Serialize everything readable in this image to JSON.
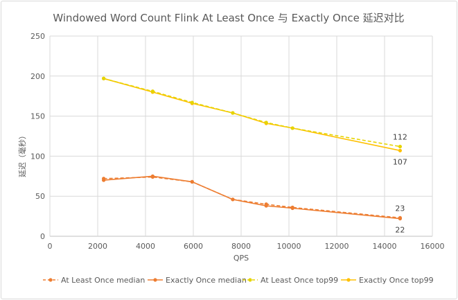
{
  "chart_data": {
    "type": "line",
    "title": "Windowed Word Count Flink At Least Once 与 Exactly Once 延迟对比",
    "xlabel": "QPS",
    "ylabel": "延迟（毫秒）",
    "xlim": [
      0,
      16000
    ],
    "ylim": [
      0,
      250
    ],
    "x_ticks": [
      "0",
      "2000",
      "4000",
      "6000",
      "8000",
      "10000",
      "12000",
      "14000",
      "16000"
    ],
    "y_ticks": [
      "0",
      "50",
      "100",
      "150",
      "200",
      "250"
    ],
    "x_tick_values": [
      0,
      2000,
      4000,
      6000,
      8000,
      10000,
      12000,
      14000,
      16000
    ],
    "y_tick_values": [
      0,
      50,
      100,
      150,
      200,
      250
    ],
    "grid": true,
    "legend_position": "bottom",
    "series": [
      {
        "name": "At Least Once median",
        "color": "#ED7D31",
        "dashed": true,
        "points": [
          [
            2250,
            72
          ],
          [
            4300,
            74
          ],
          [
            5950,
            68
          ],
          [
            7650,
            46
          ],
          [
            9050,
            40
          ],
          [
            10150,
            36
          ],
          [
            14650,
            23
          ]
        ]
      },
      {
        "name": "Exactly Once median",
        "color": "#ED7D31",
        "dashed": false,
        "points": [
          [
            2250,
            70
          ],
          [
            4300,
            75
          ],
          [
            5950,
            68
          ],
          [
            7650,
            46
          ],
          [
            9050,
            38
          ],
          [
            10150,
            35
          ],
          [
            14650,
            22
          ]
        ]
      },
      {
        "name": "At Least Once top99",
        "color": "#E6D400",
        "dashed": true,
        "points": [
          [
            2250,
            197
          ],
          [
            4300,
            181
          ],
          [
            5950,
            167
          ],
          [
            7650,
            154
          ],
          [
            9050,
            142
          ],
          [
            10150,
            135
          ],
          [
            14650,
            112
          ]
        ]
      },
      {
        "name": "Exactly Once top99",
        "color": "#FFC000",
        "dashed": false,
        "points": [
          [
            2250,
            197
          ],
          [
            4300,
            180
          ],
          [
            5950,
            166
          ],
          [
            7650,
            154
          ],
          [
            9050,
            141
          ],
          [
            10150,
            135
          ],
          [
            14650,
            107
          ]
        ]
      }
    ],
    "data_labels": [
      {
        "text": "112",
        "series": 2,
        "point": 6,
        "position": "above"
      },
      {
        "text": "107",
        "series": 3,
        "point": 6,
        "position": "below"
      },
      {
        "text": "23",
        "series": 0,
        "point": 6,
        "position": "above"
      },
      {
        "text": "22",
        "series": 1,
        "point": 6,
        "position": "below"
      }
    ]
  }
}
